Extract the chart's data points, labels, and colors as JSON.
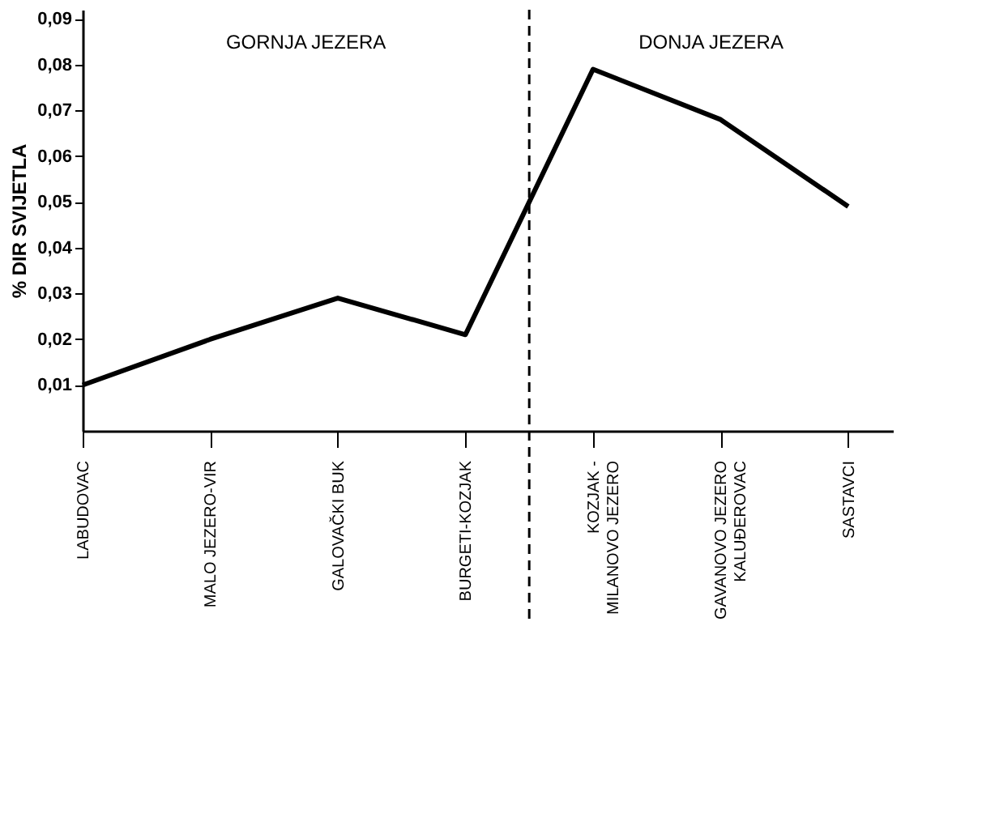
{
  "chart_data": {
    "type": "line",
    "ylabel": "% DIR SVIJETLA",
    "categories": [
      "LABUDOVAC",
      "MALO JEZERO-VIR",
      "GALOVAČKI BUK",
      "BURGETI-KOZJAK",
      "KOZJAK -\nMILANOVO JEZERO",
      "GAVANOVO JEZERO\nKALUĐEROVAC",
      "SASTAVCI"
    ],
    "series": [
      {
        "color": "#000000",
        "values": [
          0.01,
          0.02,
          0.029,
          0.021,
          0.079,
          0.068,
          0.049
        ]
      }
    ],
    "ylim": [
      0,
      0.092
    ],
    "yticks": [
      {
        "value": 0.01,
        "label": "0,01"
      },
      {
        "value": 0.02,
        "label": "0,02"
      },
      {
        "value": 0.03,
        "label": "0,03"
      },
      {
        "value": 0.04,
        "label": "0,04"
      },
      {
        "value": 0.05,
        "label": "0,05"
      },
      {
        "value": 0.06,
        "label": "0,06"
      },
      {
        "value": 0.07,
        "label": "0,07"
      },
      {
        "value": 0.08,
        "label": "0,08"
      },
      {
        "value": 0.09,
        "label": "0,09"
      }
    ],
    "annotations": [
      "GORNJA JEZERA",
      "DONJA JEZERA"
    ],
    "grid": false,
    "marker": "none",
    "line_style": "solid"
  }
}
